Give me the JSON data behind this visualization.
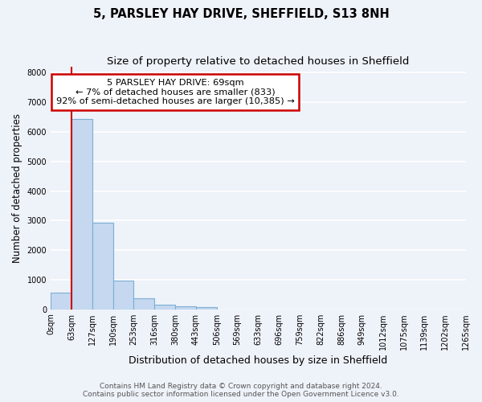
{
  "title_line1": "5, PARSLEY HAY DRIVE, SHEFFIELD, S13 8NH",
  "title_line2": "Size of property relative to detached houses in Sheffield",
  "xlabel": "Distribution of detached houses by size in Sheffield",
  "ylabel": "Number of detached properties",
  "bar_values": [
    560,
    6420,
    2920,
    980,
    370,
    165,
    100,
    70,
    0,
    0,
    0,
    0,
    0,
    0,
    0,
    0,
    0,
    0,
    0,
    0
  ],
  "bar_labels": [
    "0sqm",
    "63sqm",
    "127sqm",
    "190sqm",
    "253sqm",
    "316sqm",
    "380sqm",
    "443sqm",
    "506sqm",
    "569sqm",
    "633sqm",
    "696sqm",
    "759sqm",
    "822sqm",
    "886sqm",
    "949sqm",
    "1012sqm",
    "1075sqm",
    "1139sqm",
    "1202sqm",
    "1265sqm"
  ],
  "bar_color": "#c5d8f0",
  "bar_edge_color": "#7aafd4",
  "property_line_x": 1.0,
  "annotation_text": "5 PARSLEY HAY DRIVE: 69sqm\n← 7% of detached houses are smaller (833)\n92% of semi-detached houses are larger (10,385) →",
  "annotation_box_color": "#cc0000",
  "ylim": [
    0,
    8200
  ],
  "yticks": [
    0,
    1000,
    2000,
    3000,
    4000,
    5000,
    6000,
    7000,
    8000
  ],
  "footer_line1": "Contains HM Land Registry data © Crown copyright and database right 2024.",
  "footer_line2": "Contains public sector information licensed under the Open Government Licence v3.0.",
  "background_color": "#eef2f9",
  "axes_background": "#eef2f9",
  "grid_color": "#ffffff",
  "title_fontsize": 10.5,
  "subtitle_fontsize": 9.5,
  "tick_fontsize": 7,
  "ylabel_fontsize": 8.5,
  "xlabel_fontsize": 9,
  "footer_fontsize": 6.5
}
